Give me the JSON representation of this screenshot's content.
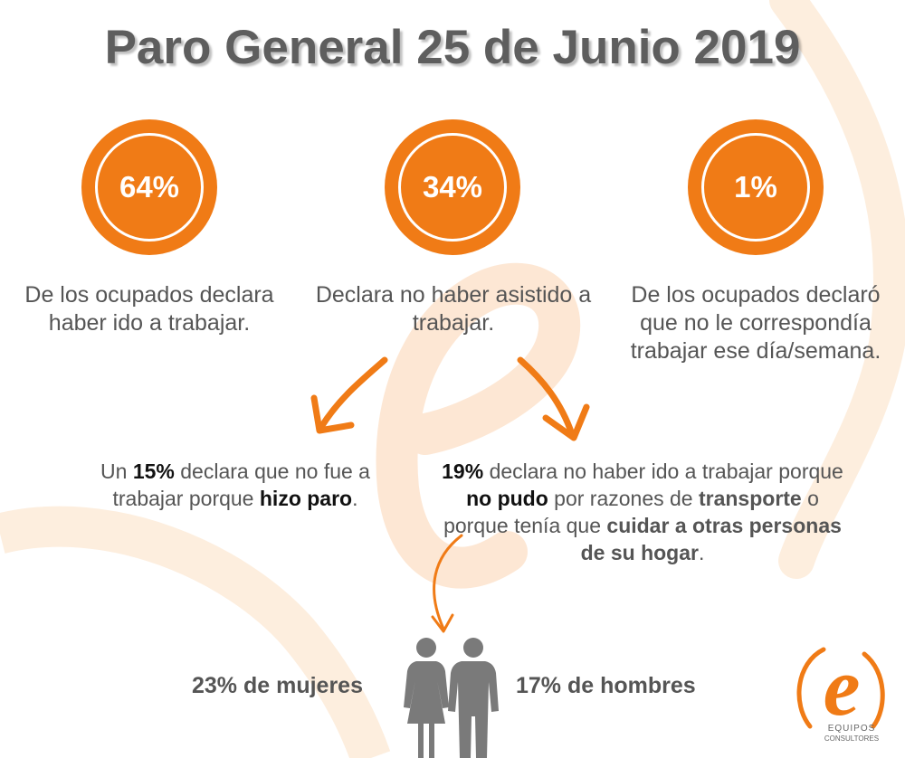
{
  "title": "Paro General 25 de Junio 2019",
  "colors": {
    "accent": "#f07b16",
    "text": "#555555",
    "watermark": "#fde7d4"
  },
  "stats": [
    {
      "value": "64%",
      "text": "De los ocupados declara haber ido a trabajar."
    },
    {
      "value": "34%",
      "text": "Declara no haber asistido a trabajar."
    },
    {
      "value": "1%",
      "text": "De los ocupados declaró que no le correspondía trabajar ese día/semana."
    }
  ],
  "breakdown": {
    "left": {
      "p1": "Un ",
      "b1": "15%",
      "p2": " declara que no fue a trabajar porque ",
      "b2": "hizo paro",
      "p3": "."
    },
    "right": {
      "b1": "19%",
      "p1": " declara no haber ido a trabajar porque ",
      "b2": "no pudo",
      "p2": " por razones de ",
      "b3": "transporte",
      "p3": " o porque tenía que ",
      "b4": "cuidar a otras personas de su hogar",
      "p4": "."
    }
  },
  "gender": {
    "women": "23% de mujeres",
    "men": "17% de hombres"
  },
  "logo": {
    "letter": "e",
    "name": "EQUIPOS",
    "tagline": "CONSULTORES"
  },
  "icons": {
    "people": "people-icon",
    "arrow": "arrow-icon"
  }
}
